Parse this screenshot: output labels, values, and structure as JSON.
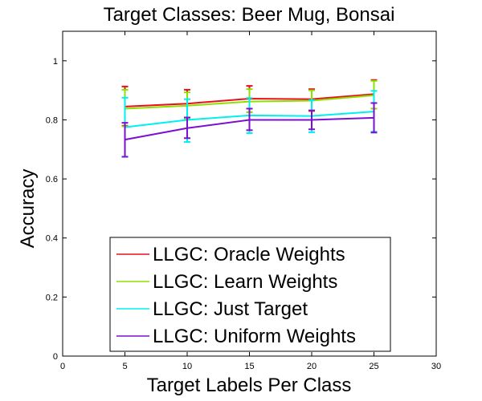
{
  "chart_data": {
    "type": "line",
    "title": "Target Classes: Beer Mug, Bonsai",
    "xlabel": "Target Labels Per Class",
    "ylabel": "Accuracy",
    "xlim": [
      0,
      30
    ],
    "ylim": [
      0,
      1.1
    ],
    "xticks": [
      0,
      5,
      10,
      15,
      20,
      25,
      30
    ],
    "yticks": [
      0,
      0.2,
      0.4,
      0.6,
      0.8,
      1
    ],
    "xtick_labels": [
      "0",
      "5",
      "10",
      "15",
      "20",
      "25",
      "30"
    ],
    "ytick_labels": [
      "0",
      "0.2",
      "0.4",
      "0.6",
      "0.8",
      "1"
    ],
    "grid": false,
    "legend_position": "bottom-center",
    "x": [
      5,
      10,
      15,
      20,
      25
    ],
    "series": [
      {
        "name": "LLGC: Oracle Weights",
        "color": "#e8101a",
        "values": [
          0.845,
          0.855,
          0.872,
          0.87,
          0.887
        ],
        "err_low": [
          0.78,
          0.808,
          0.826,
          0.83,
          0.838
        ],
        "err_high": [
          0.913,
          0.902,
          0.915,
          0.904,
          0.935
        ]
      },
      {
        "name": "LLGC: Learn Weights",
        "color": "#8ee000",
        "values": [
          0.838,
          0.848,
          0.862,
          0.865,
          0.883
        ],
        "err_low": [
          0.778,
          0.802,
          0.826,
          0.832,
          0.838
        ],
        "err_high": [
          0.902,
          0.893,
          0.904,
          0.9,
          0.932
        ]
      },
      {
        "name": "LLGC: Just Target",
        "color": "#00f0f0",
        "values": [
          0.775,
          0.8,
          0.815,
          0.813,
          0.828
        ],
        "err_low": [
          0.675,
          0.725,
          0.755,
          0.758,
          0.76
        ],
        "err_high": [
          0.875,
          0.87,
          0.874,
          0.867,
          0.898
        ]
      },
      {
        "name": "LLGC: Uniform Weights",
        "color": "#7a10d0",
        "values": [
          0.733,
          0.772,
          0.8,
          0.8,
          0.807
        ],
        "err_low": [
          0.675,
          0.738,
          0.765,
          0.768,
          0.757
        ],
        "err_high": [
          0.79,
          0.808,
          0.838,
          0.832,
          0.857
        ]
      }
    ]
  }
}
